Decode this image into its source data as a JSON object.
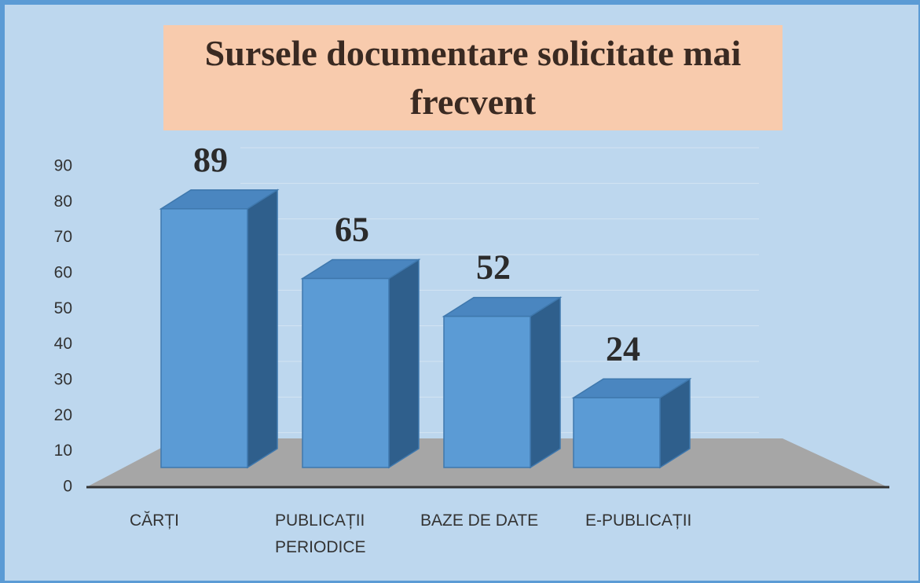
{
  "chart_data": {
    "type": "bar3d",
    "title": "Sursele documentare solicitate mai frecvent",
    "categories": [
      "CĂRȚI",
      "PUBLICAȚII PERIODICE",
      "BAZE DE DATE",
      "E-PUBLICAȚII"
    ],
    "values": [
      89,
      65,
      52,
      24
    ],
    "color": "#5b9bd5",
    "ylim": [
      0,
      90
    ],
    "yticks": [
      0,
      10,
      20,
      30,
      40,
      50,
      60,
      70,
      80,
      90
    ],
    "grid": true
  }
}
